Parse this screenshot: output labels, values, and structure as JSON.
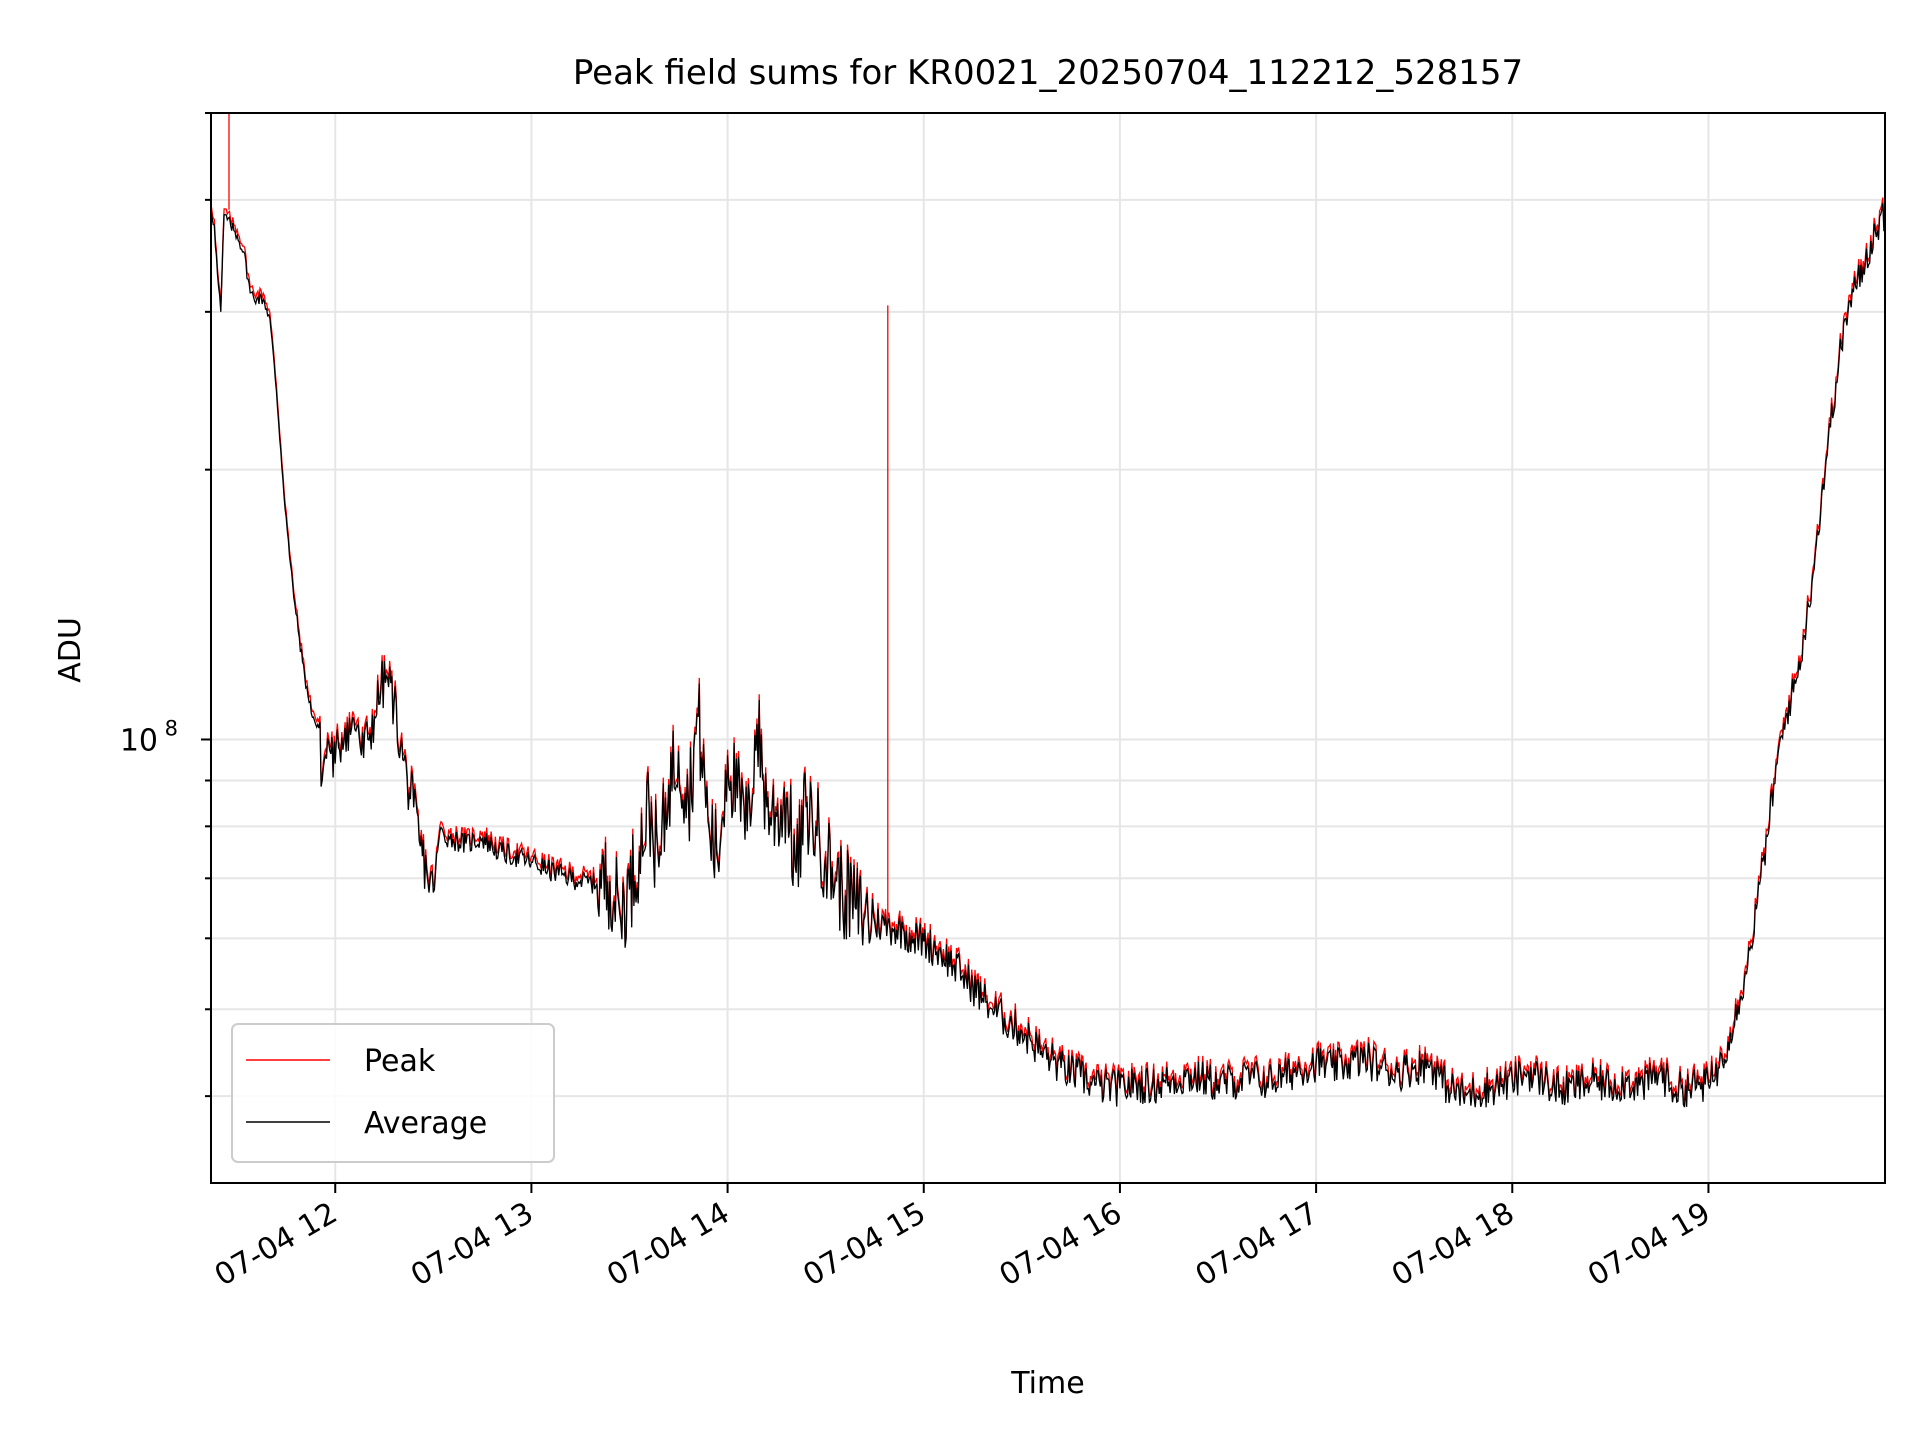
{
  "chart_data": {
    "type": "line",
    "title": "Peak field sums for KR0021_20250704_112212_528157",
    "xlabel": "Time",
    "ylabel": "ADU",
    "yscale": "log",
    "xlim": [
      "07-04 11:22",
      "07-04 19:54"
    ],
    "ylim": [
      32000000,
      500000000
    ],
    "grid": true,
    "legend": "lower-left",
    "x_ticks": [
      "07-04 12",
      "07-04 13",
      "07-04 14",
      "07-04 15",
      "07-04 16",
      "07-04 17",
      "07-04 18",
      "07-04 19"
    ],
    "y_ticks": [
      {
        "value": 100000000,
        "base": "10",
        "exp": "8"
      }
    ],
    "colors": {
      "Peak": "#ff0000",
      "Average": "#000000"
    },
    "series": [
      {
        "name": "Average",
        "points": [
          [
            "07-04 11:22",
            390000000.0
          ],
          [
            "07-04 11:23",
            375000000.0
          ],
          [
            "07-04 11:24",
            330000000.0
          ],
          [
            "07-04 11:25",
            300000000.0
          ],
          [
            "07-04 11:26",
            385000000.0
          ],
          [
            "07-04 11:28",
            375000000.0
          ],
          [
            "07-04 11:30",
            365000000.0
          ],
          [
            "07-04 11:32",
            350000000.0
          ],
          [
            "07-04 11:34",
            315000000.0
          ],
          [
            "07-04 11:36",
            310000000.0
          ],
          [
            "07-04 11:38",
            310000000.0
          ],
          [
            "07-04 11:40",
            295000000.0
          ],
          [
            "07-04 11:42",
            245000000.0
          ],
          [
            "07-04 11:44",
            195000000.0
          ],
          [
            "07-04 11:46",
            160000000.0
          ],
          [
            "07-04 11:48",
            138000000.0
          ],
          [
            "07-04 11:50",
            122000000.0
          ],
          [
            "07-04 11:52",
            110000000.0
          ],
          [
            "07-04 11:54",
            104000000.0
          ],
          [
            "07-04 11:55",
            103000000.0
          ],
          [
            "07-04 11:56",
            90000000.0
          ],
          [
            "07-04 11:57",
            96000000.0
          ],
          [
            "07-04 11:58",
            99000000.0
          ],
          [
            "07-04 12:00",
            94000000.0
          ],
          [
            "07-04 12:01",
            98000000.0
          ],
          [
            "07-04 12:03",
            103000000.0
          ],
          [
            "07-04 12:05",
            103000000.0
          ],
          [
            "07-04 12:07",
            104000000.0
          ],
          [
            "07-04 12:08",
            96000000.0
          ],
          [
            "07-04 12:10",
            100000000.0
          ],
          [
            "07-04 12:12",
            106000000.0
          ],
          [
            "07-04 12:14",
            114000000.0
          ],
          [
            "07-04 12:16",
            117000000.0
          ],
          [
            "07-04 12:18",
            110000000.0
          ],
          [
            "07-04 12:20",
            98000000.0
          ],
          [
            "07-04 12:22",
            90000000.0
          ],
          [
            "07-04 12:24",
            84000000.0
          ],
          [
            "07-04 12:26",
            76000000.0
          ],
          [
            "07-04 12:28",
            71000000.0
          ],
          [
            "07-04 12:30",
            67500000.0
          ],
          [
            "07-04 12:32",
            79000000.0
          ],
          [
            "07-04 12:35",
            77500000.0
          ],
          [
            "07-04 12:40",
            76500000.0
          ],
          [
            "07-04 12:45",
            77500000.0
          ],
          [
            "07-04 12:50",
            75000000.0
          ],
          [
            "07-04 12:55",
            74000000.0
          ],
          [
            "07-04 13:00",
            73000000.0
          ],
          [
            "07-04 13:05",
            71500000.0
          ],
          [
            "07-04 13:10",
            70500000.0
          ],
          [
            "07-04 13:15",
            69500000.0
          ],
          [
            "07-04 13:20",
            69000000.0
          ],
          [
            "07-04 13:24",
            69500000.0
          ],
          [
            "07-04 13:27",
            64000000.0
          ],
          [
            "07-04 13:30",
            68000000.0
          ],
          [
            "07-04 13:33",
            75000000.0
          ],
          [
            "07-04 13:36",
            84000000.0
          ],
          [
            "07-04 13:39",
            72000000.0
          ],
          [
            "07-04 13:42",
            89000000.0
          ],
          [
            "07-04 13:45",
            97000000.0
          ],
          [
            "07-04 13:48",
            85000000.0
          ],
          [
            "07-04 13:51",
            106000000.0
          ],
          [
            "07-04 13:54",
            81000000.0
          ],
          [
            "07-04 13:57",
            73000000.0
          ],
          [
            "07-04 14:00",
            96000000.0
          ],
          [
            "07-04 14:03",
            86000000.0
          ],
          [
            "07-04 14:06",
            79000000.0
          ],
          [
            "07-04 14:09",
            104000000.0
          ],
          [
            "07-04 14:12",
            84000000.0
          ],
          [
            "07-04 14:15",
            82000000.0
          ],
          [
            "07-04 14:18",
            86000000.0
          ],
          [
            "07-04 14:21",
            71000000.0
          ],
          [
            "07-04 14:24",
            84000000.0
          ],
          [
            "07-04 14:27",
            80000000.0
          ],
          [
            "07-04 14:30",
            74000000.0
          ],
          [
            "07-04 14:33",
            70000000.0
          ],
          [
            "07-04 14:36",
            67000000.0
          ],
          [
            "07-04 14:39",
            65000000.0
          ],
          [
            "07-04 14:42",
            63500000.0
          ],
          [
            "07-04 14:45",
            62500000.0
          ],
          [
            "07-04 14:48",
            62000000.0
          ],
          [
            "07-04 14:51",
            61500000.0
          ],
          [
            "07-04 14:54",
            61000000.0
          ],
          [
            "07-04 14:57",
            60000000.0
          ],
          [
            "07-04 15:00",
            59500000.0
          ],
          [
            "07-04 15:03",
            58500000.0
          ],
          [
            "07-04 15:06",
            57500000.0
          ],
          [
            "07-04 15:09",
            56000000.0
          ],
          [
            "07-04 15:12",
            54500000.0
          ],
          [
            "07-04 15:15",
            53000000.0
          ],
          [
            "07-04 15:18",
            51500000.0
          ],
          [
            "07-04 15:21",
            50000000.0
          ],
          [
            "07-04 15:24",
            49000000.0
          ],
          [
            "07-04 15:27",
            48000000.0
          ],
          [
            "07-04 15:30",
            47200000.0
          ],
          [
            "07-04 15:33",
            46000000.0
          ],
          [
            "07-04 15:36",
            44800000.0
          ],
          [
            "07-04 15:39",
            44000000.0
          ],
          [
            "07-04 15:42",
            43000000.0
          ],
          [
            "07-04 15:45",
            42500000.0
          ],
          [
            "07-04 15:48",
            42000000.0
          ],
          [
            "07-04 15:51",
            41500000.0
          ],
          [
            "07-04 15:54",
            41000000.0
          ],
          [
            "07-04 16:00",
            40800000.0
          ],
          [
            "07-04 16:05",
            41200000.0
          ],
          [
            "07-04 16:10",
            41000000.0
          ],
          [
            "07-04 16:15",
            41500000.0
          ],
          [
            "07-04 16:20",
            42000000.0
          ],
          [
            "07-04 16:25",
            41800000.0
          ],
          [
            "07-04 16:30",
            41200000.0
          ],
          [
            "07-04 16:35",
            41500000.0
          ],
          [
            "07-04 16:40",
            42000000.0
          ],
          [
            "07-04 16:45",
            41500000.0
          ],
          [
            "07-04 16:50",
            42000000.0
          ],
          [
            "07-04 16:55",
            43000000.0
          ],
          [
            "07-04 17:00",
            43500000.0
          ],
          [
            "07-04 17:05",
            43000000.0
          ],
          [
            "07-04 17:10",
            43500000.0
          ],
          [
            "07-04 17:15",
            44000000.0
          ],
          [
            "07-04 17:20",
            43000000.0
          ],
          [
            "07-04 17:25",
            42500000.0
          ],
          [
            "07-04 17:30",
            43000000.0
          ],
          [
            "07-04 17:35",
            43500000.0
          ],
          [
            "07-04 17:40",
            41000000.0
          ],
          [
            "07-04 17:45",
            40000000.0
          ],
          [
            "07-04 17:50",
            40500000.0
          ],
          [
            "07-04 17:55",
            41000000.0
          ],
          [
            "07-04 18:00",
            41500000.0
          ],
          [
            "07-04 18:05",
            42500000.0
          ],
          [
            "07-04 18:10",
            41500000.0
          ],
          [
            "07-04 18:15",
            40500000.0
          ],
          [
            "07-04 18:20",
            41000000.0
          ],
          [
            "07-04 18:25",
            41500000.0
          ],
          [
            "07-04 18:30",
            41000000.0
          ],
          [
            "07-04 18:35",
            41500000.0
          ],
          [
            "07-04 18:40",
            41000000.0
          ],
          [
            "07-04 18:45",
            42500000.0
          ],
          [
            "07-04 18:50",
            40500000.0
          ],
          [
            "07-04 18:55",
            41000000.0
          ],
          [
            "07-04 19:00",
            41200000.0
          ],
          [
            "07-04 19:03",
            43000000.0
          ],
          [
            "07-04 19:06",
            46000000.0
          ],
          [
            "07-04 19:09",
            50500000.0
          ],
          [
            "07-04 19:12",
            56000000.0
          ],
          [
            "07-04 19:15",
            66000000.0
          ],
          [
            "07-04 19:18",
            78000000.0
          ],
          [
            "07-04 19:21",
            94000000.0
          ],
          [
            "07-04 19:24",
            107000000.0
          ],
          [
            "07-04 19:27",
            117000000.0
          ],
          [
            "07-04 19:30",
            135000000.0
          ],
          [
            "07-04 19:33",
            165000000.0
          ],
          [
            "07-04 19:36",
            205000000.0
          ],
          [
            "07-04 19:39",
            250000000.0
          ],
          [
            "07-04 19:42",
            295000000.0
          ],
          [
            "07-04 19:45",
            320000000.0
          ],
          [
            "07-04 19:48",
            340000000.0
          ],
          [
            "07-04 19:51",
            370000000.0
          ],
          [
            "07-04 19:54",
            385000000.0
          ]
        ]
      },
      {
        "name": "Peak",
        "points": [
          [
            "07-04 11:22",
            395000000.0
          ],
          [
            "07-04 11:25",
            305000000.0
          ],
          [
            "07-04 11:26",
            395000000.0
          ],
          [
            "07-04 11:26",
            500000000.0
          ],
          [
            "07-04 11:27",
            390000000.0
          ],
          [
            "07-04 11:34",
            320000000.0
          ],
          [
            "07-04 11:40",
            300000000.0
          ],
          [
            "07-04 11:46",
            162000000.0
          ],
          [
            "07-04 11:55",
            105000000.0
          ],
          [
            "07-04 12:16",
            119000000.0
          ],
          [
            "07-04 12:30",
            68500000.0
          ],
          [
            "07-04 13:00",
            74000000.0
          ],
          [
            "07-04 13:24",
            70500000.0
          ],
          [
            "07-04 13:51",
            108000000.0
          ],
          [
            "07-04 14:09",
            106000000.0
          ],
          [
            "07-04 14:39",
            66000000.0
          ],
          [
            "07-04 14:48",
            63000000.0
          ],
          [
            "07-04 14:49",
            305000000.0
          ],
          [
            "07-04 14:50",
            63000000.0
          ],
          [
            "07-04 15:00",
            60500000.0
          ],
          [
            "07-04 15:30",
            48000000.0
          ],
          [
            "07-04 16:00",
            41500000.0
          ],
          [
            "07-04 17:00",
            44500000.0
          ],
          [
            "07-04 18:00",
            42200000.0
          ],
          [
            "07-04 19:00",
            42000000.0
          ],
          [
            "07-04 19:30",
            138000000.0
          ],
          [
            "07-04 19:54",
            390000000.0
          ]
        ]
      }
    ]
  }
}
